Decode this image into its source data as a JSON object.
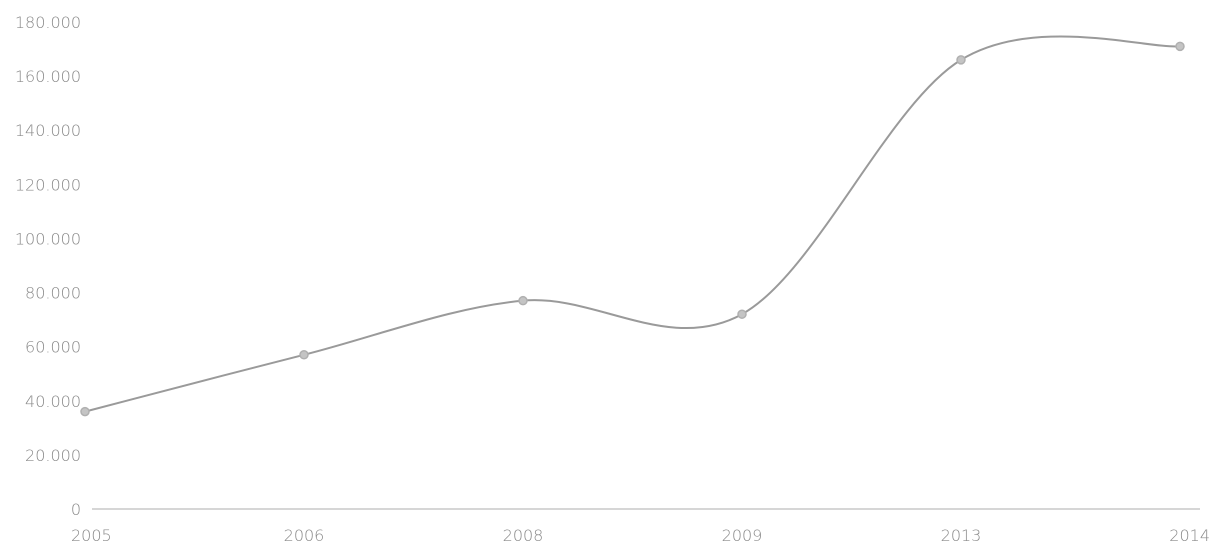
{
  "chart_data": {
    "type": "line",
    "categories": [
      "2005",
      "2006",
      "2008",
      "2009",
      "2013",
      "2014"
    ],
    "values": [
      36000,
      57000,
      77000,
      72000,
      166000,
      171000
    ],
    "ylim": [
      0,
      180000
    ],
    "yticks": [
      0,
      20000,
      40000,
      60000,
      80000,
      100000,
      120000,
      140000,
      160000,
      180000
    ],
    "ytick_labels": [
      "0",
      "20.000",
      "40.000",
      "60.000",
      "80.000",
      "100.000",
      "120.000",
      "140.000",
      "160.000",
      "180.000"
    ],
    "title": "",
    "xlabel": "",
    "ylabel": "",
    "grid": false,
    "smooth": true,
    "colors": {
      "line": "#9a9a9a",
      "point_fill": "#c4c4c4",
      "axis": "#c8c8c8",
      "text": "#8a8a8a"
    }
  }
}
